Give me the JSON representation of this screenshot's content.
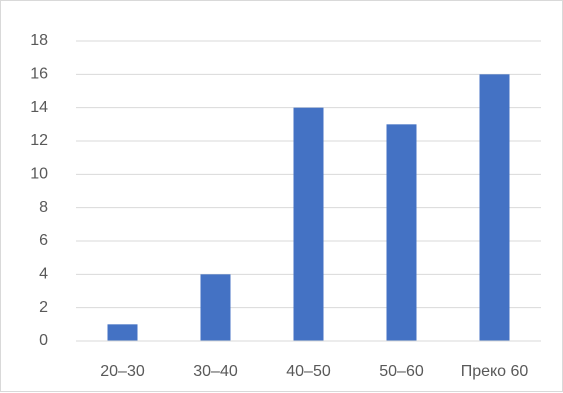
{
  "chart_data": {
    "type": "bar",
    "title": "",
    "xlabel": "",
    "ylabel": "",
    "categories": [
      "20–30",
      "30–40",
      "40–50",
      "50–60",
      "Преко 60"
    ],
    "values": [
      1,
      4,
      14,
      13,
      16
    ],
    "ylim": [
      0,
      18
    ],
    "yticks": [
      "0",
      "2",
      "4",
      "6",
      "8",
      "10",
      "12",
      "14",
      "16",
      "18"
    ],
    "grid": true,
    "legend": "none",
    "colors": {
      "bar": "#4472C4",
      "gridline": "#d9d9d9",
      "axis": "#d9d9d9",
      "text": "#595959"
    }
  }
}
